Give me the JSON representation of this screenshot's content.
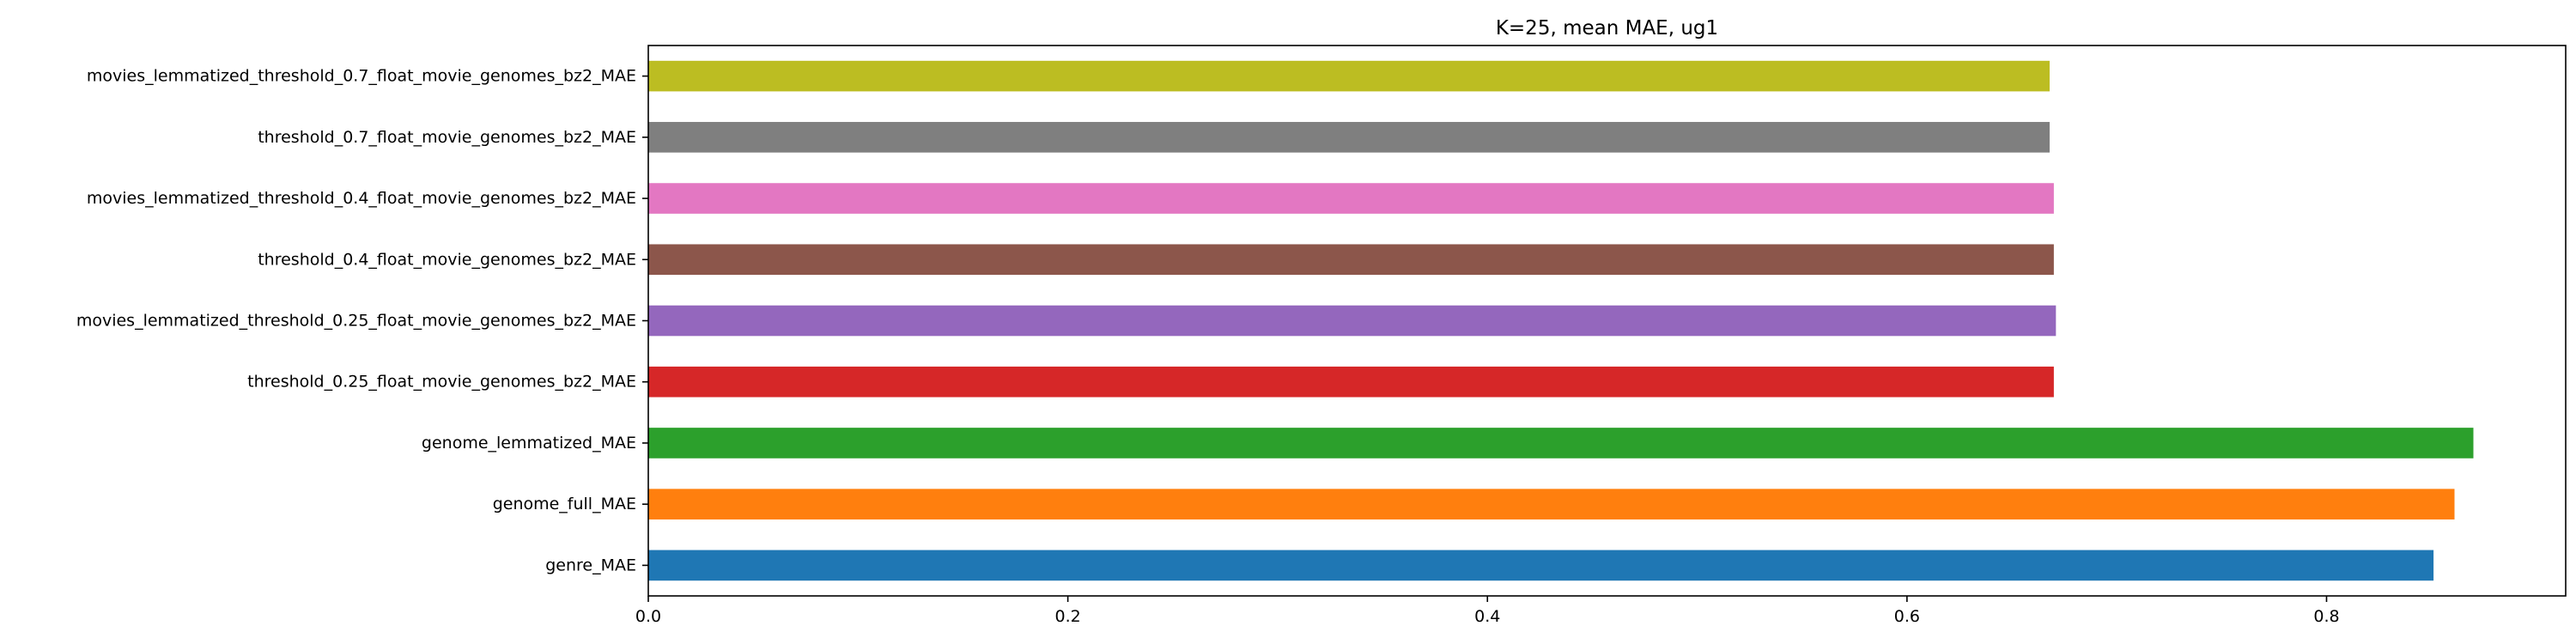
{
  "chart_data": {
    "type": "bar",
    "orientation": "horizontal",
    "title": "K=25, mean MAE, ug1",
    "xlabel": "",
    "ylabel": "",
    "xlim": [
      0,
      0.914
    ],
    "xticks": [
      0.0,
      0.2,
      0.4,
      0.6,
      0.8
    ],
    "xtick_labels": [
      "0.0",
      "0.2",
      "0.4",
      "0.6",
      "0.8"
    ],
    "grid": false,
    "legend": false,
    "categories": [
      "genre_MAE",
      "genome_full_MAE",
      "genome_lemmatized_MAE",
      "threshold_0.25_float_movie_genomes_bz2_MAE",
      "movies_lemmatized_threshold_0.25_float_movie_genomes_bz2_MAE",
      "threshold_0.4_float_movie_genomes_bz2_MAE",
      "movies_lemmatized_threshold_0.4_float_movie_genomes_bz2_MAE",
      "threshold_0.7_float_movie_genomes_bz2_MAE",
      "movies_lemmatized_threshold_0.7_float_movie_genomes_bz2_MAE"
    ],
    "values": [
      0.851,
      0.861,
      0.87,
      0.67,
      0.671,
      0.67,
      0.67,
      0.668,
      0.668
    ],
    "colors": [
      "#1f77b4",
      "#ff7f0e",
      "#2ca02c",
      "#d62728",
      "#9467bd",
      "#8c564b",
      "#e377c2",
      "#7f7f7f",
      "#bcbd22"
    ]
  }
}
